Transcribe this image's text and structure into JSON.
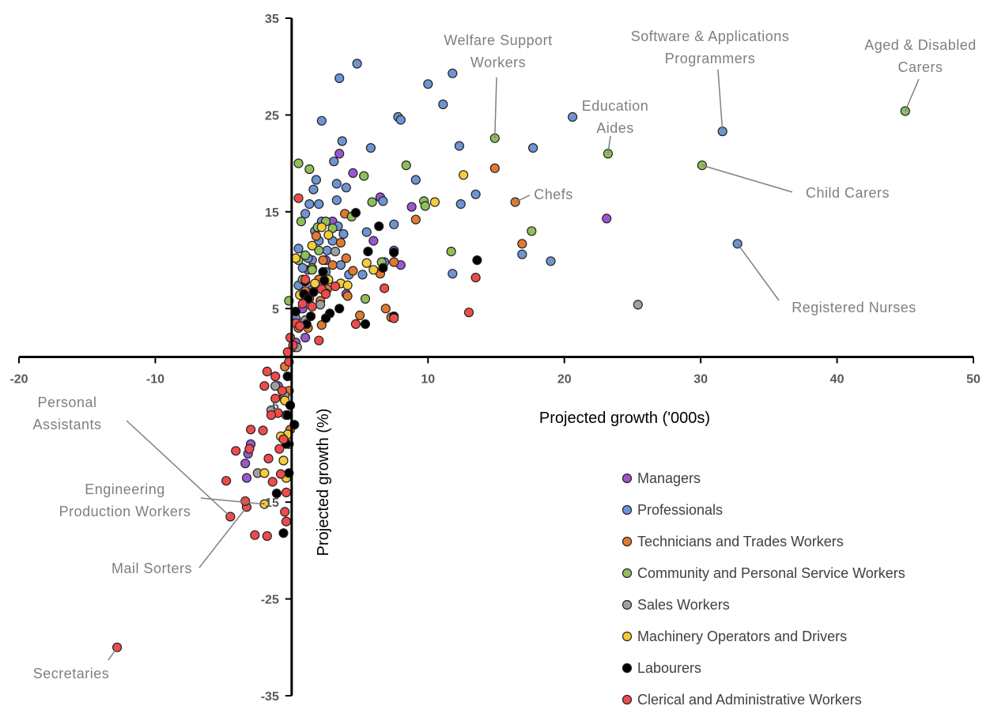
{
  "chart_data": {
    "type": "scatter",
    "xlabel": "Projected growth ('000s)",
    "ylabel": "Projected growth (%)",
    "xlim": [
      -20,
      50
    ],
    "ylim": [
      -35,
      35
    ],
    "x_ticks": [
      "-20",
      "-10",
      "0",
      "10",
      "20",
      "30",
      "40",
      "50"
    ],
    "y_ticks": [
      "-35",
      "-25",
      "-15",
      "-5",
      "5",
      "15",
      "25",
      "35"
    ],
    "legend_position": "bottom-right",
    "series": [
      {
        "name": "Managers",
        "color": "#9a57cd",
        "points": [
          [
            0.5,
            3
          ],
          [
            1,
            2
          ],
          [
            0.3,
            1.5
          ],
          [
            1.5,
            7
          ],
          [
            2,
            8
          ],
          [
            2.5,
            10
          ],
          [
            3,
            14
          ],
          [
            3.5,
            21
          ],
          [
            4.5,
            19
          ],
          [
            6,
            12
          ],
          [
            6.5,
            16.5
          ],
          [
            7.5,
            11
          ],
          [
            8,
            9.5
          ],
          [
            8.8,
            15.5
          ],
          [
            23.1,
            14.3
          ],
          [
            0.8,
            5
          ],
          [
            1.2,
            9
          ],
          [
            4,
            6.5
          ],
          [
            -1,
            -3
          ],
          [
            -3,
            -9
          ],
          [
            -3.2,
            -10
          ],
          [
            -3.4,
            -11
          ],
          [
            -3.3,
            -12.5
          ]
        ]
      },
      {
        "name": "Professionals",
        "color": "#6f94d4",
        "points": [
          [
            4.8,
            30.3
          ],
          [
            11.8,
            29.3
          ],
          [
            3.5,
            28.8
          ],
          [
            10,
            28.2
          ],
          [
            11.1,
            26.1
          ],
          [
            7.8,
            24.8
          ],
          [
            8,
            24.5
          ],
          [
            2.2,
            24.4
          ],
          [
            20.6,
            24.8
          ],
          [
            31.6,
            23.3
          ],
          [
            3.7,
            22.3
          ],
          [
            12.3,
            21.8
          ],
          [
            5.8,
            21.6
          ],
          [
            17.7,
            21.6
          ],
          [
            3.1,
            20.2
          ],
          [
            9.1,
            18.3
          ],
          [
            1.8,
            18.3
          ],
          [
            3.3,
            17.9
          ],
          [
            4,
            17.5
          ],
          [
            1.6,
            17.3
          ],
          [
            13.5,
            16.8
          ],
          [
            3.3,
            16.2
          ],
          [
            6.7,
            16.1
          ],
          [
            2,
            15.8
          ],
          [
            1.3,
            15.8
          ],
          [
            12.4,
            15.8
          ],
          [
            5.5,
            12.9
          ],
          [
            0.5,
            11.2
          ],
          [
            1.5,
            10
          ],
          [
            32.7,
            11.7
          ],
          [
            16.9,
            10.6
          ],
          [
            19,
            9.9
          ],
          [
            11.8,
            8.6
          ],
          [
            7.5,
            13.7
          ],
          [
            3.8,
            12.7
          ],
          [
            2.2,
            14
          ],
          [
            1,
            14.8
          ],
          [
            0.5,
            7.4
          ],
          [
            1.2,
            10.2
          ],
          [
            2.5,
            8.8
          ],
          [
            3,
            12
          ],
          [
            4.2,
            8.5
          ],
          [
            5.2,
            8.5
          ],
          [
            6.8,
            9.8
          ],
          [
            3.4,
            13.5
          ],
          [
            2,
            12
          ],
          [
            0.8,
            9.2
          ],
          [
            1.7,
            13
          ],
          [
            2.6,
            11
          ],
          [
            3.6,
            9.5
          ],
          [
            0.3,
            4
          ]
        ]
      },
      {
        "name": "Technicians and Trades Workers",
        "color": "#e07a2f",
        "points": [
          [
            14.9,
            19.5
          ],
          [
            16.4,
            16
          ],
          [
            16.9,
            11.7
          ],
          [
            9.1,
            14.2
          ],
          [
            3.9,
            14.8
          ],
          [
            7.5,
            9.8
          ],
          [
            4,
            10.2
          ],
          [
            2.3,
            10
          ],
          [
            1.5,
            9.2
          ],
          [
            4.5,
            8.9
          ],
          [
            6.5,
            8.6
          ],
          [
            4.1,
            6.3
          ],
          [
            2.1,
            5.8
          ],
          [
            6.9,
            5
          ],
          [
            5,
            4.3
          ],
          [
            7.3,
            4.1
          ],
          [
            2.2,
            3.3
          ],
          [
            1.2,
            3
          ],
          [
            1.8,
            12.5
          ],
          [
            3,
            9.5
          ],
          [
            2,
            8
          ],
          [
            1,
            6.8
          ],
          [
            0.5,
            3
          ],
          [
            0.2,
            1
          ],
          [
            -0.5,
            -1
          ],
          [
            -0.2,
            -3.5
          ],
          [
            -0.4,
            -6
          ],
          [
            -0.1,
            -7.5
          ],
          [
            -0.6,
            -4.2
          ],
          [
            1.3,
            6
          ],
          [
            2.6,
            7
          ],
          [
            3.6,
            11.8
          ]
        ]
      },
      {
        "name": "Community and Personal Service Workers",
        "color": "#8ebf5b",
        "points": [
          [
            45,
            25.4
          ],
          [
            14.9,
            22.6
          ],
          [
            23.2,
            21
          ],
          [
            30.1,
            19.8
          ],
          [
            0.5,
            20
          ],
          [
            1.3,
            19.4
          ],
          [
            5.3,
            18.7
          ],
          [
            8.4,
            19.8
          ],
          [
            9.7,
            16.1
          ],
          [
            9.8,
            15.6
          ],
          [
            5.9,
            16
          ],
          [
            4.4,
            14.5
          ],
          [
            1.9,
            13.4
          ],
          [
            0.7,
            14
          ],
          [
            17.6,
            13
          ],
          [
            11.7,
            10.9
          ],
          [
            0.5,
            10
          ],
          [
            6.6,
            9.8
          ],
          [
            5.4,
            6
          ],
          [
            -0.2,
            5.8
          ],
          [
            1,
            10.5
          ],
          [
            2.5,
            14
          ],
          [
            0.8,
            8
          ],
          [
            1.5,
            9
          ],
          [
            2,
            11
          ],
          [
            3,
            13.3
          ]
        ]
      },
      {
        "name": "Sales Workers",
        "color": "#a0a0a0",
        "points": [
          [
            25.4,
            5.4
          ],
          [
            3.2,
            10.9
          ],
          [
            2.1,
            5.4
          ],
          [
            0.4,
            1
          ],
          [
            -1.2,
            -3
          ],
          [
            -1.5,
            -5.5
          ],
          [
            -2.5,
            -12
          ],
          [
            -0.5,
            -4
          ],
          [
            1,
            3.8
          ]
        ]
      },
      {
        "name": "Machinery Operators and Drivers",
        "color": "#f5cc39",
        "points": [
          [
            12.6,
            18.8
          ],
          [
            10.5,
            16
          ],
          [
            2.2,
            13.4
          ],
          [
            2.7,
            12.6
          ],
          [
            1.5,
            11.5
          ],
          [
            0.3,
            10.2
          ],
          [
            3.6,
            7.6
          ],
          [
            4.1,
            7.4
          ],
          [
            5.5,
            9.7
          ],
          [
            6,
            9
          ],
          [
            2.7,
            8
          ],
          [
            1.7,
            7.6
          ],
          [
            0.6,
            6.4
          ],
          [
            -0.5,
            -4.5
          ],
          [
            -0.3,
            -8
          ],
          [
            -0.8,
            -8.2
          ],
          [
            -0.2,
            -9
          ],
          [
            -0.6,
            -10.7
          ],
          [
            -0.4,
            -12.5
          ],
          [
            -2,
            -15.2
          ],
          [
            -2,
            -12
          ]
        ]
      },
      {
        "name": "Labourers",
        "color": "#000000",
        "points": [
          [
            4.7,
            14.9
          ],
          [
            6.4,
            13.5
          ],
          [
            5.6,
            10.9
          ],
          [
            7.5,
            10.8
          ],
          [
            13.6,
            10
          ],
          [
            6.7,
            9.2
          ],
          [
            2.3,
            8.8
          ],
          [
            1,
            7.8
          ],
          [
            2.4,
            7.9
          ],
          [
            1.6,
            6.7
          ],
          [
            0.9,
            6.5
          ],
          [
            2.5,
            6.6
          ],
          [
            1.2,
            6
          ],
          [
            3.5,
            5
          ],
          [
            0.3,
            4.7
          ],
          [
            1.4,
            4.2
          ],
          [
            2.8,
            4.5
          ],
          [
            5.4,
            3.4
          ],
          [
            7.5,
            4.2
          ],
          [
            1.1,
            3.4
          ],
          [
            -0.3,
            -2
          ],
          [
            -0.1,
            -5
          ],
          [
            -0.4,
            -9
          ],
          [
            -0.2,
            -12
          ],
          [
            -0.3,
            -6
          ],
          [
            -0.6,
            -18.2
          ],
          [
            -1.1,
            -14.1
          ],
          [
            0.2,
            -7
          ],
          [
            2.5,
            4
          ]
        ]
      },
      {
        "name": "Clerical and Administrative Workers",
        "color": "#f04b4b",
        "points": [
          [
            0.5,
            16.4
          ],
          [
            13.5,
            8.2
          ],
          [
            13,
            4.6
          ],
          [
            6.8,
            7.1
          ],
          [
            7.5,
            4
          ],
          [
            2,
            1.7
          ],
          [
            4.7,
            3.4
          ],
          [
            2.2,
            7
          ],
          [
            1,
            8
          ],
          [
            0.8,
            5.5
          ],
          [
            0.3,
            3.5
          ],
          [
            -0.1,
            2
          ],
          [
            -0.3,
            0.5
          ],
          [
            -0.2,
            -0.5
          ],
          [
            -1.8,
            -1.5
          ],
          [
            -2,
            -3
          ],
          [
            -1.2,
            -4.3
          ],
          [
            -1,
            -5.8
          ],
          [
            -2.1,
            -7.6
          ],
          [
            -0.6,
            -8.5
          ],
          [
            -1.7,
            -10.5
          ],
          [
            -0.8,
            -12.1
          ],
          [
            -4.8,
            -12.8
          ],
          [
            -4.1,
            -9.7
          ],
          [
            -3.1,
            -9.5
          ],
          [
            -0.4,
            -14
          ],
          [
            -3.3,
            -15.5
          ],
          [
            -3.4,
            -14.9
          ],
          [
            -0.5,
            -16
          ],
          [
            -0.4,
            -17
          ],
          [
            -1.8,
            -18.5
          ],
          [
            -12.8,
            -30
          ],
          [
            -4.5,
            -16.5
          ],
          [
            -3,
            -7.5
          ],
          [
            -1.5,
            -6
          ],
          [
            -0.9,
            -9.5
          ],
          [
            -1.4,
            -12.9
          ],
          [
            -2.7,
            -18.4
          ],
          [
            -1.2,
            -2
          ],
          [
            -0.7,
            -3.5
          ],
          [
            0.1,
            1.2
          ],
          [
            0.6,
            3.2
          ],
          [
            1.5,
            5.2
          ],
          [
            2.5,
            6.5
          ],
          [
            3.2,
            7.3
          ]
        ]
      }
    ],
    "annotations": [
      {
        "lines": [
          "Welfare Support",
          "Workers"
        ],
        "point": [
          14.9,
          22.6
        ]
      },
      {
        "lines": [
          "Software & Applications",
          "Programmers"
        ],
        "point": [
          31.6,
          23.3
        ]
      },
      {
        "lines": [
          "Aged & Disabled",
          "Carers"
        ],
        "point": [
          45,
          25.4
        ]
      },
      {
        "lines": [
          "Education",
          "Aides"
        ],
        "point": [
          23.2,
          21
        ]
      },
      {
        "lines": [
          "Chefs"
        ],
        "point": [
          16.4,
          16
        ]
      },
      {
        "lines": [
          "Child Carers"
        ],
        "point": [
          30.1,
          19.8
        ]
      },
      {
        "lines": [
          "Registered Nurses"
        ],
        "point": [
          32.7,
          11.7
        ]
      },
      {
        "lines": [
          "Personal",
          "Assistants"
        ],
        "point": [
          -4.5,
          -16.5
        ]
      },
      {
        "lines": [
          "Engineering",
          "Production Workers"
        ],
        "point": [
          -2,
          -15.2
        ]
      },
      {
        "lines": [
          "Mail Sorters"
        ],
        "point": [
          -3.3,
          -15.5
        ]
      },
      {
        "lines": [
          "Secretaries"
        ],
        "point": [
          -12.8,
          -30
        ]
      }
    ]
  }
}
